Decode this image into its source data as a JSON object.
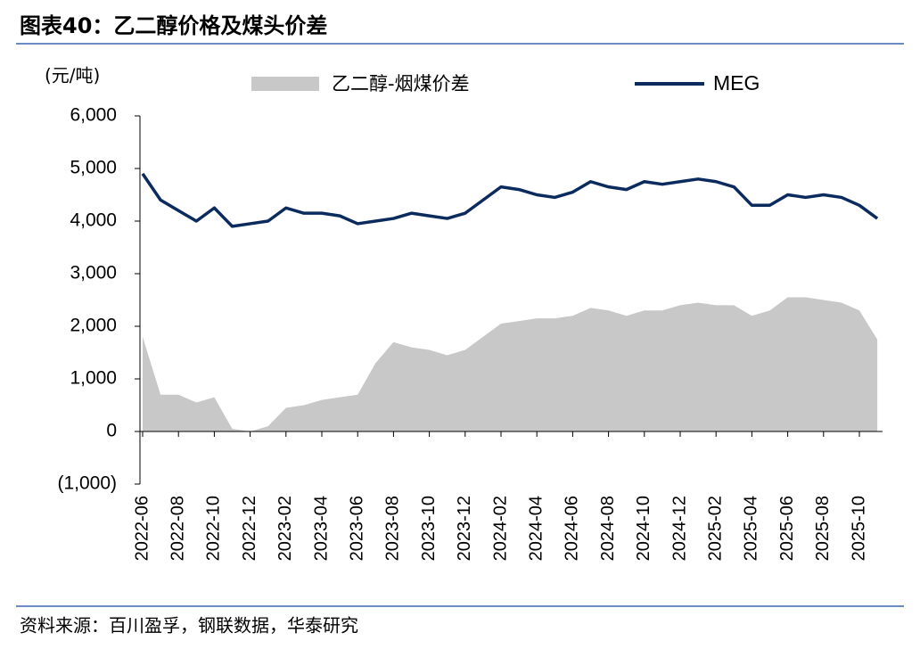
{
  "title": "图表40：乙二醇价格及煤头价差",
  "source": "资料来源：百川盈孚，钢联数据，华泰研究",
  "chart_data": {
    "type": "line",
    "y_unit": "(元/吨)",
    "x": [
      "2022-06",
      "2022-07",
      "2022-08",
      "2022-09",
      "2022-10",
      "2022-11",
      "2022-12",
      "2023-01",
      "2023-02",
      "2023-03",
      "2023-04",
      "2023-05",
      "2023-06",
      "2023-07",
      "2023-08",
      "2023-09",
      "2023-10",
      "2023-11",
      "2023-12",
      "2024-01",
      "2024-02",
      "2024-03",
      "2024-04",
      "2024-05",
      "2024-06",
      "2024-07",
      "2024-08",
      "2024-09",
      "2024-10",
      "2024-11",
      "2024-12",
      "2025-01",
      "2025-02",
      "2025-03",
      "2025-04",
      "2025-05",
      "2025-06",
      "2025-07",
      "2025-08",
      "2025-09",
      "2025-10",
      "2025-11"
    ],
    "xticks": [
      "2022-06",
      "2022-08",
      "2022-10",
      "2022-12",
      "2023-02",
      "2023-04",
      "2023-06",
      "2023-08",
      "2023-10",
      "2023-12",
      "2024-02",
      "2024-04",
      "2024-06",
      "2024-08",
      "2024-10",
      "2024-12",
      "2025-02",
      "2025-04",
      "2025-06",
      "2025-08",
      "2025-10"
    ],
    "series": [
      {
        "name": "乙二醇-烟煤价差",
        "kind": "area",
        "color": "#c8c8c8",
        "values": [
          1800,
          700,
          700,
          550,
          650,
          50,
          0,
          100,
          450,
          500,
          600,
          650,
          700,
          1300,
          1700,
          1600,
          1550,
          1450,
          1550,
          1800,
          2050,
          2100,
          2150,
          2150,
          2200,
          2350,
          2300,
          2200,
          2300,
          2300,
          2400,
          2450,
          2400,
          2400,
          2200,
          2300,
          2550,
          2550,
          2500,
          2450,
          2300,
          1750
        ]
      },
      {
        "name": "MEG",
        "kind": "line",
        "color": "#0b2a5e",
        "values": [
          4900,
          4400,
          4200,
          4000,
          4250,
          3900,
          3950,
          4000,
          4250,
          4150,
          4150,
          4100,
          3950,
          4000,
          4050,
          4150,
          4100,
          4050,
          4150,
          4400,
          4650,
          4600,
          4500,
          4450,
          4550,
          4750,
          4650,
          4600,
          4750,
          4700,
          4750,
          4800,
          4750,
          4650,
          4300,
          4300,
          4500,
          4450,
          4500,
          4450,
          4300,
          4050
        ]
      }
    ],
    "ylim": [
      -1000,
      6000
    ],
    "yticks": [
      {
        "value": -1000,
        "label": "(1,000)"
      },
      0,
      {
        "value": 1000,
        "label": "1,000"
      },
      {
        "value": 2000,
        "label": "2,000"
      },
      {
        "value": 3000,
        "label": "3,000"
      },
      {
        "value": 4000,
        "label": "4,000"
      },
      {
        "value": 5000,
        "label": "5,000"
      },
      {
        "value": 6000,
        "label": "6,000"
      }
    ]
  }
}
